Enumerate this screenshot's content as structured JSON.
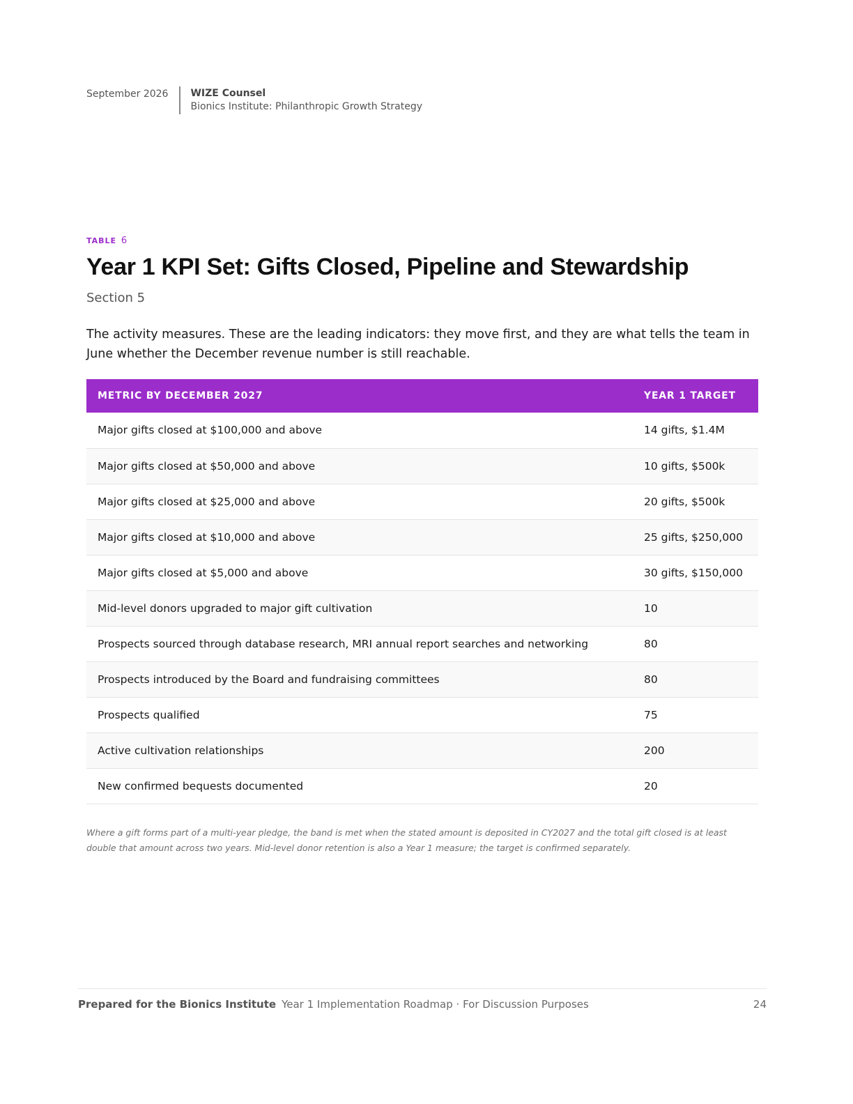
{
  "header": {
    "date": "September 2026",
    "org": "WIZE Counsel",
    "subtitle": "Bionics Institute: Philanthropic Growth Strategy"
  },
  "table_label": {
    "prefix": "TABLE",
    "number": "6"
  },
  "title": "Year 1 KPI Set: Gifts Closed, Pipeline and Stewardship",
  "section": "Section 5",
  "intro": "The activity measures. These are the leading indicators: they move first, and they are what tells the team in June whether the December revenue number is still reachable.",
  "table": {
    "headers": {
      "metric": "METRIC BY DECEMBER 2027",
      "target": "YEAR 1 TARGET"
    },
    "rows": [
      {
        "metric": "Major gifts closed at $100,000 and above",
        "target": "14 gifts, $1.4M"
      },
      {
        "metric": "Major gifts closed at $50,000 and above",
        "target": "10 gifts, $500k"
      },
      {
        "metric": "Major gifts closed at $25,000 and above",
        "target": "20 gifts, $500k"
      },
      {
        "metric": "Major gifts closed at $10,000 and above",
        "target": "25 gifts, $250,000"
      },
      {
        "metric": "Major gifts closed at $5,000 and above",
        "target": "30 gifts, $150,000"
      },
      {
        "metric": "Mid-level donors upgraded to major gift cultivation",
        "target": "10"
      },
      {
        "metric": "Prospects sourced through database research, MRI annual report searches and networking",
        "target": "80"
      },
      {
        "metric": "Prospects introduced by the Board and fundraising committees",
        "target": "80"
      },
      {
        "metric": "Prospects qualified",
        "target": "75"
      },
      {
        "metric": "Active cultivation relationships",
        "target": "200"
      },
      {
        "metric": "New confirmed bequests documented",
        "target": "20"
      }
    ]
  },
  "note": "Where a gift forms part of a multi-year pledge, the band is met when the stated amount is deposited in CY2027 and the total gift closed is at least double that amount across two years. Mid-level donor retention is also a Year 1 measure; the target is confirmed separately.",
  "footer": {
    "prepared_for": "Prepared for the Bionics Institute",
    "doc_name": "Year 1 Implementation Roadmap · For Discussion Purposes",
    "page_number": "24"
  },
  "colors": {
    "accent": "#9b2dca"
  }
}
